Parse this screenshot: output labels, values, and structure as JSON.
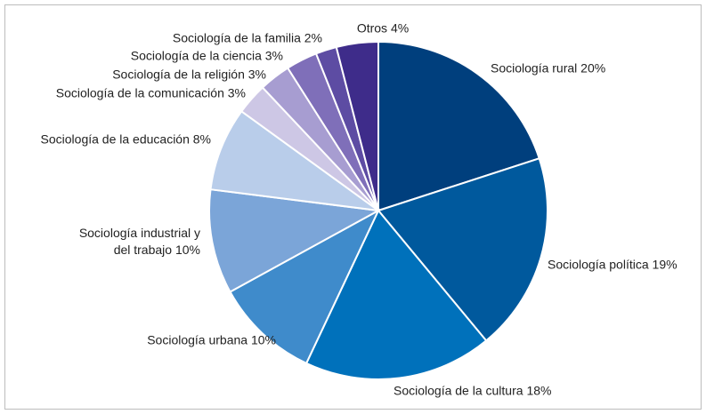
{
  "chart_data": {
    "type": "pie",
    "categories": [
      "Sociología rural",
      "Sociología política",
      "Sociología de la cultura",
      "Sociología urbana",
      "Sociología industrial y del trabajo",
      "Sociología de la educación",
      "Sociología de la comunicación",
      "Sociología de la religión",
      "Sociología de la ciencia",
      "Sociología de la familia",
      "Otros"
    ],
    "values": [
      20,
      19,
      18,
      10,
      10,
      8,
      3,
      3,
      3,
      2,
      4
    ],
    "value_labels": [
      "20%",
      "19%",
      "18%",
      "10%",
      "10%",
      "8%",
      "3%",
      "3%",
      "3%",
      "2%",
      "4%"
    ],
    "colors": [
      "#003f7d",
      "#00599d",
      "#0071bb",
      "#3f8bcb",
      "#7ba5d8",
      "#b9cdea",
      "#cdc7e5",
      "#a79dd1",
      "#7f6fb9",
      "#5d4ca3",
      "#3e2c8a"
    ]
  }
}
